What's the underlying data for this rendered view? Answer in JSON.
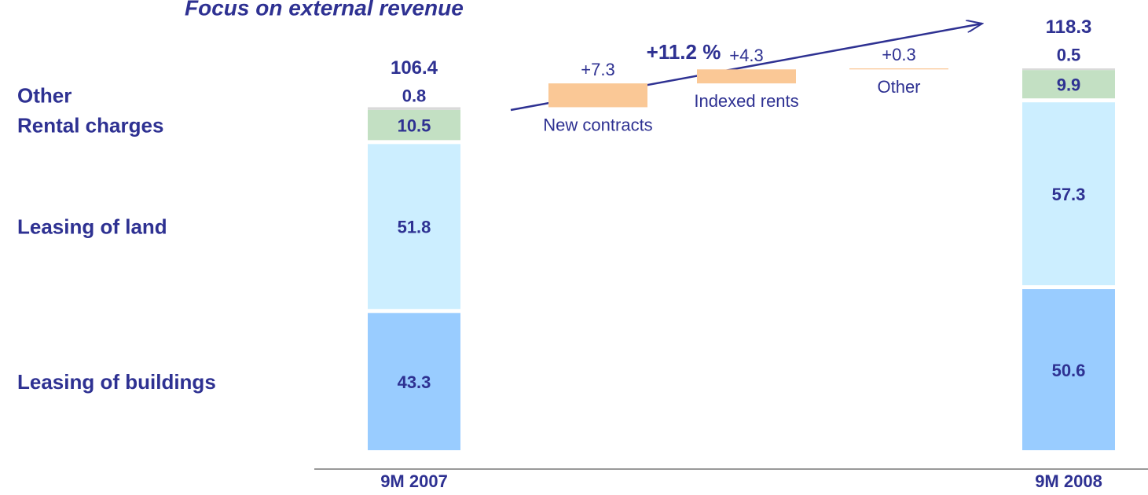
{
  "chart_data": {
    "type": "waterfall",
    "title": "Focus on external revenue",
    "annotation": "+11.2 %",
    "categories": [
      "9M 2007",
      "New contracts",
      "Indexed rents",
      "Other",
      "9M 2008"
    ],
    "series": [
      {
        "name": "Leasing of buildings",
        "color": "#99ccff",
        "values": [
          43.3,
          null,
          null,
          null,
          50.6
        ]
      },
      {
        "name": "Leasing of land",
        "color": "#cceeff",
        "values": [
          51.8,
          null,
          null,
          null,
          57.3
        ]
      },
      {
        "name": "Rental charges",
        "color": "#c3e0c3",
        "values": [
          10.5,
          null,
          null,
          null,
          9.9
        ]
      },
      {
        "name": "Other",
        "color": "#d9d9d9",
        "values": [
          0.8,
          null,
          null,
          null,
          0.5
        ]
      }
    ],
    "totals": {
      "values": [
        106.4,
        null,
        null,
        null,
        118.3
      ]
    },
    "changes": {
      "color": "#fac896",
      "values": [
        null,
        7.3,
        4.3,
        0.3,
        null
      ],
      "value_labels": [
        null,
        "+7.3",
        "+4.3",
        "+0.3",
        null
      ]
    },
    "ylim": [
      0,
      120
    ]
  }
}
